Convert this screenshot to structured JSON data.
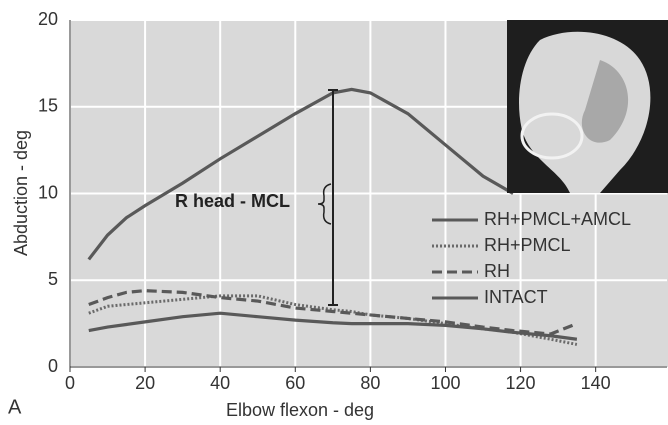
{
  "chart_data": {
    "type": "line",
    "x_label": "Elbow flexon - deg",
    "y_label": "Abduction - deg",
    "annotation": "R head - MCL",
    "panel_label": "A",
    "x": [
      5,
      10,
      15,
      20,
      30,
      40,
      50,
      60,
      70,
      75,
      80,
      90,
      100,
      110,
      118,
      128,
      135
    ],
    "series": [
      {
        "name": "RH+PMCL+AMCL",
        "color": "#595959",
        "dash": "solid",
        "values": [
          6.2,
          7.6,
          8.6,
          9.3,
          10.6,
          12.0,
          13.3,
          14.6,
          15.8,
          16.0,
          15.8,
          14.6,
          12.8,
          11.0,
          10.0,
          null,
          null
        ]
      },
      {
        "name": "RH+PMCL",
        "color": "#6a6a6a",
        "dash": "dotted",
        "values": [
          3.1,
          3.5,
          3.6,
          3.7,
          3.9,
          4.1,
          4.1,
          3.6,
          3.3,
          3.2,
          3.0,
          2.8,
          2.5,
          2.2,
          2.0,
          1.6,
          1.3
        ]
      },
      {
        "name": "RH",
        "color": "#595959",
        "dash": "dashed",
        "values": [
          3.6,
          4.0,
          4.3,
          4.4,
          4.3,
          4.0,
          3.8,
          3.4,
          3.2,
          3.1,
          3.0,
          2.8,
          2.6,
          2.3,
          2.1,
          1.9,
          2.5
        ]
      },
      {
        "name": "INTACT",
        "color": "#595959",
        "dash": "solid",
        "values": [
          2.1,
          2.3,
          2.45,
          2.6,
          2.9,
          3.1,
          2.9,
          2.7,
          2.55,
          2.5,
          2.5,
          2.5,
          2.4,
          2.2,
          2.0,
          1.8,
          1.6
        ]
      }
    ],
    "xlim": [
      0,
      159
    ],
    "ylim": [
      0,
      20
    ],
    "xticks": [
      0,
      20,
      40,
      60,
      80,
      100,
      120,
      140
    ],
    "yticks": [
      0,
      5,
      10,
      15,
      20
    ],
    "grid": true
  }
}
